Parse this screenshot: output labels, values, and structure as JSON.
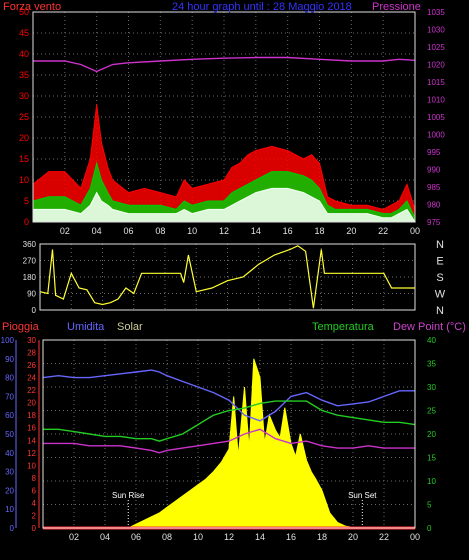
{
  "header": {
    "wind_label": "Forza vento",
    "title": "24 hour graph until : 28 Maggio 2018",
    "pressure_label": "Pressione"
  },
  "bottom_header": {
    "rain_label": "Pioggia",
    "humidity_label": "Umidita",
    "solar_label": "Solar",
    "temperature_label": "Temperatura",
    "dewpoint_label": "Dew Point (°C)"
  },
  "colors": {
    "background": "#000000",
    "axis": "#e0e0e0",
    "grid": "#6a6a6a",
    "wind_gust": "#ff0000",
    "wind_avg": "#00cc00",
    "wind_low": "#f0fff0",
    "pressure": "#cc33cc",
    "direction": "#ffff33",
    "humidity": "#6666ff",
    "temperature": "#22cc22",
    "dewpoint": "#cc33cc",
    "solar": "#ffff00",
    "rain": "#ff3333",
    "rain_label": "#ff3333",
    "humidity_label": "#6666ff",
    "solar_label": "#cccc99",
    "temperature_label": "#22cc22",
    "dewpoint_label": "#cc44cc",
    "sun_text": "#ffffff"
  },
  "chart_data": [
    {
      "id": "wind",
      "type": "line",
      "x_ticks": [
        "02",
        "04",
        "06",
        "08",
        "10",
        "12",
        "14",
        "16",
        "18",
        "20",
        "22",
        "00"
      ],
      "y_ticks_left": [
        0,
        5,
        10,
        15,
        20,
        25,
        30,
        35,
        40,
        45,
        50
      ],
      "y_ticks_right": [
        975,
        980,
        985,
        990,
        995,
        1000,
        1005,
        1010,
        1015,
        1020,
        1025,
        1030,
        1035
      ],
      "ylim_left": [
        0,
        50
      ],
      "ylim_right": [
        975,
        1035
      ],
      "xlim": [
        0,
        24
      ],
      "grid": true,
      "series": [
        {
          "key": "gust",
          "color_key": "wind_gust",
          "x": [
            0,
            1,
            2,
            3,
            3.6,
            4,
            4.3,
            4.7,
            5,
            6,
            7,
            8,
            9,
            9.5,
            10,
            11,
            12,
            12.5,
            13,
            13.5,
            14,
            15,
            16,
            17,
            17.5,
            18,
            18.5,
            19,
            20,
            21,
            22,
            22.5,
            23,
            23.5,
            24
          ],
          "y": [
            9,
            12,
            12,
            8,
            15,
            28,
            19,
            13,
            10,
            7,
            8,
            7,
            6,
            10,
            8,
            9,
            10,
            13,
            14,
            16,
            17,
            18,
            17,
            15,
            16,
            14,
            6,
            5,
            4,
            4,
            3,
            4,
            5,
            9,
            3
          ]
        },
        {
          "key": "average",
          "color_key": "wind_avg",
          "x": [
            0,
            1,
            2,
            3,
            3.6,
            4,
            4.3,
            4.7,
            5,
            6,
            7,
            8,
            9,
            9.5,
            10,
            11,
            12,
            12.5,
            13,
            13.5,
            14,
            15,
            16,
            17,
            17.5,
            18,
            18.5,
            19,
            20,
            21,
            22,
            22.5,
            23,
            23.5,
            24
          ],
          "y": [
            5,
            6,
            6,
            4,
            8,
            14,
            10,
            7,
            5,
            4,
            4,
            4,
            3,
            5,
            4,
            5,
            5,
            7,
            8,
            9,
            10,
            12,
            12,
            11,
            10,
            8,
            4,
            3,
            3,
            3,
            2,
            2,
            3,
            5,
            1
          ]
        },
        {
          "key": "low",
          "color_key": "wind_low",
          "x": [
            0,
            1,
            2,
            3,
            3.6,
            4,
            4.3,
            4.7,
            5,
            6,
            7,
            8,
            9,
            9.5,
            10,
            11,
            12,
            12.5,
            13,
            13.5,
            14,
            15,
            16,
            17,
            17.5,
            18,
            18.5,
            19,
            20,
            21,
            22,
            22.5,
            23,
            23.5,
            24
          ],
          "y": [
            3,
            3,
            3,
            2,
            4,
            7,
            5,
            4,
            3,
            2,
            2,
            2,
            2,
            3,
            2,
            3,
            3,
            4,
            5,
            6,
            7,
            8,
            8,
            7,
            6,
            5,
            2,
            2,
            2,
            2,
            1,
            1,
            2,
            3,
            0
          ]
        },
        {
          "key": "pressure",
          "color_key": "pressure",
          "axis": "right",
          "x": [
            0,
            1,
            2,
            3,
            3.5,
            4,
            4.5,
            5,
            6,
            8,
            10,
            12,
            14,
            16,
            18,
            20,
            22,
            23,
            24
          ],
          "y": [
            1021,
            1021,
            1021,
            1020,
            1019,
            1018,
            1019,
            1020,
            1020.5,
            1021,
            1021.5,
            1021.8,
            1022,
            1022,
            1021.5,
            1021,
            1021,
            1021.5,
            1021.2
          ]
        }
      ]
    },
    {
      "id": "direction",
      "type": "line",
      "x_ticks": [
        "02",
        "04",
        "06",
        "08",
        "10",
        "12",
        "14",
        "16",
        "18",
        "20",
        "22",
        "00"
      ],
      "y_ticks": [
        0,
        90,
        180,
        270,
        360
      ],
      "ylim": [
        0,
        360
      ],
      "xlim": [
        0,
        24
      ],
      "compass_labels": [
        "N",
        "W",
        "S",
        "E",
        "N"
      ],
      "grid": true,
      "series": [
        {
          "key": "direction",
          "color_key": "direction",
          "x": [
            0,
            0.5,
            0.8,
            1,
            1.5,
            2,
            2.5,
            3,
            3.5,
            4,
            4.5,
            5,
            5.5,
            6,
            6.5,
            7,
            8,
            9,
            9.2,
            9.5,
            10,
            11,
            12,
            13,
            14,
            15,
            16,
            16.5,
            17,
            17.5,
            18,
            18.2,
            18.5,
            19,
            20,
            21,
            22,
            22.5,
            23,
            24
          ],
          "y": [
            100,
            90,
            330,
            80,
            60,
            200,
            120,
            110,
            40,
            30,
            40,
            60,
            120,
            90,
            200,
            200,
            200,
            200,
            150,
            300,
            100,
            120,
            160,
            180,
            250,
            300,
            330,
            350,
            320,
            10,
            330,
            200,
            200,
            200,
            200,
            200,
            200,
            120,
            120,
            120
          ]
        }
      ]
    },
    {
      "id": "weather",
      "type": "area",
      "x_ticks": [
        "02",
        "04",
        "06",
        "08",
        "10",
        "12",
        "14",
        "16",
        "18",
        "20",
        "22",
        "00"
      ],
      "y_ticks_humidity": [
        0,
        10,
        20,
        30,
        40,
        50,
        60,
        70,
        80,
        90,
        100
      ],
      "y_ticks_rain": [
        0,
        2,
        4,
        6,
        8,
        10,
        12,
        14,
        16,
        18,
        20,
        22,
        24,
        26,
        28,
        30
      ],
      "y_ticks_temp": [
        0,
        5,
        10,
        15,
        20,
        25,
        30,
        35,
        40
      ],
      "ylim_humidity": [
        0,
        100
      ],
      "ylim_rain": [
        0,
        30
      ],
      "ylim_temp": [
        0,
        40
      ],
      "ylim_solar": [
        0,
        1000
      ],
      "xlim": [
        0,
        24
      ],
      "grid": true,
      "annotations": {
        "sun_rise": "Sun Rise",
        "sun_set": "Sun Set",
        "sun_rise_x": 5.5,
        "sun_set_x": 20.6
      },
      "series": [
        {
          "key": "humidity",
          "color_key": "humidity",
          "axis": "humidity",
          "x": [
            0,
            1,
            2,
            3,
            4,
            5,
            6,
            7,
            7.5,
            8,
            9,
            10,
            11,
            12,
            13,
            14,
            15,
            16,
            17,
            18,
            19,
            20,
            21,
            22,
            23,
            24
          ],
          "y": [
            80,
            81,
            80,
            80,
            81,
            82,
            83,
            84,
            83,
            81,
            78,
            75,
            72,
            68,
            60,
            57,
            62,
            70,
            72,
            68,
            65,
            66,
            67,
            70,
            73,
            73
          ]
        },
        {
          "key": "temperature",
          "color_key": "temperature",
          "axis": "temp",
          "x": [
            0,
            1,
            2,
            3,
            4,
            5,
            6,
            7,
            7.5,
            8,
            9,
            10,
            11,
            12,
            13,
            14,
            15,
            16,
            17,
            18,
            19,
            20,
            21,
            22,
            23,
            24
          ],
          "y": [
            21,
            21,
            20.5,
            20,
            19.5,
            19.5,
            19,
            19,
            18.5,
            19,
            20,
            22,
            24,
            25,
            25.5,
            26.5,
            27,
            27,
            27,
            25,
            24,
            23.5,
            23,
            22.5,
            22.5,
            22
          ]
        },
        {
          "key": "dewpoint",
          "color_key": "dewpoint",
          "axis": "temp",
          "x": [
            0,
            1,
            2,
            3,
            4,
            5,
            6,
            7,
            7.5,
            8,
            9,
            10,
            11,
            12,
            13,
            14,
            15,
            16,
            17,
            18,
            19,
            20,
            21,
            22,
            23,
            24
          ],
          "y": [
            18,
            18,
            18,
            17.5,
            17.5,
            17.5,
            17,
            16.5,
            16,
            16.5,
            17,
            17.5,
            18,
            18.5,
            20,
            21,
            19,
            18,
            18.5,
            17.5,
            17,
            17,
            17.5,
            17,
            17,
            17
          ]
        },
        {
          "key": "solar",
          "color_key": "solar",
          "axis": "solar",
          "x": [
            5.5,
            6,
            6.5,
            7,
            7.5,
            8,
            8.5,
            9,
            9.5,
            10,
            10.5,
            11,
            11.5,
            12,
            12.3,
            12.6,
            13,
            13.3,
            13.6,
            14,
            14.3,
            14.6,
            15,
            15.3,
            15.6,
            16,
            16.3,
            16.6,
            17,
            17.3,
            17.6,
            18,
            18.5,
            19,
            19.5,
            20,
            20.6
          ],
          "y": [
            0,
            20,
            40,
            60,
            80,
            110,
            140,
            170,
            200,
            230,
            260,
            300,
            350,
            420,
            700,
            380,
            750,
            420,
            900,
            800,
            450,
            600,
            520,
            480,
            640,
            450,
            380,
            500,
            360,
            300,
            260,
            200,
            80,
            30,
            10,
            3,
            0
          ]
        },
        {
          "key": "rain",
          "color_key": "rain",
          "axis": "rain",
          "x": [
            0,
            24
          ],
          "y": [
            0,
            0
          ]
        }
      ]
    }
  ]
}
